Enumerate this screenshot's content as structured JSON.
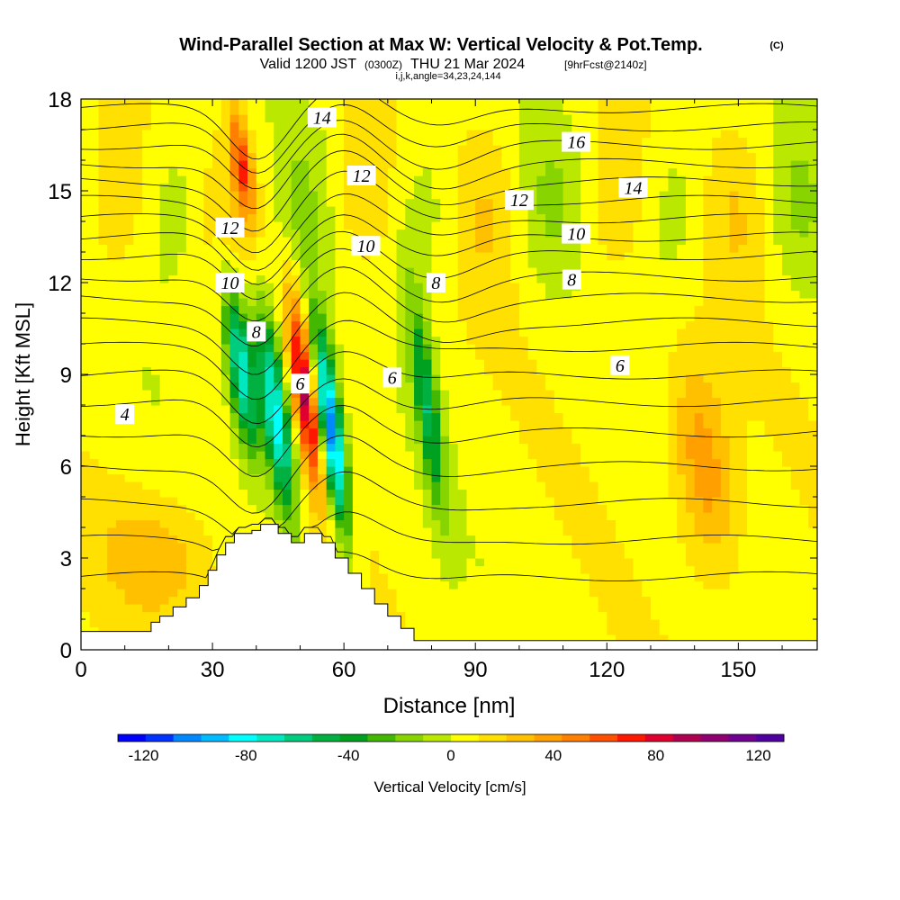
{
  "title": {
    "main": "Wind-Parallel Section at Max W: Vertical Velocity & Pot.Temp.",
    "copyright": "(C)",
    "valid_a": "Valid 1200 JST",
    "valid_utc": "(0300Z)",
    "valid_b": "THU 21 Mar 2024",
    "fcst": "[9hrFcst@2140z]",
    "ijk": "i,j,k,angle=34,23,24,144"
  },
  "chart_data": {
    "type": "heatmap",
    "xlabel": "Distance [nm]",
    "ylabel": "Height [Kft MSL]",
    "xlim": [
      0,
      168
    ],
    "ylim": [
      0,
      18
    ],
    "x_ticks": [
      0,
      30,
      60,
      90,
      120,
      150
    ],
    "y_ticks": [
      0,
      3,
      6,
      9,
      12,
      15,
      18
    ],
    "colorbar": {
      "label": "Vertical Velocity [cm/s]",
      "min": -130,
      "max": 130,
      "tick_values": [
        -120,
        -80,
        -40,
        0,
        40,
        80,
        120
      ],
      "tick_labels": [
        "-120",
        "-80",
        "-40",
        "0",
        "40",
        "80",
        "120"
      ],
      "colors": [
        "#0000ff",
        "#0033ff",
        "#0088ff",
        "#00bbff",
        "#00ffff",
        "#00e8c0",
        "#00cc80",
        "#00b040",
        "#00a020",
        "#44b800",
        "#88d400",
        "#bbe800",
        "#ffff00",
        "#ffe000",
        "#ffc000",
        "#ffa000",
        "#ff8000",
        "#ff5000",
        "#ff1800",
        "#e00030",
        "#b00050",
        "#900070",
        "#700090",
        "#5000a0"
      ]
    },
    "terrain_profile": [
      [
        0,
        0.6
      ],
      [
        16,
        0.6
      ],
      [
        16,
        0.9
      ],
      [
        18,
        0.9
      ],
      [
        18,
        1.1
      ],
      [
        21,
        1.1
      ],
      [
        21,
        1.4
      ],
      [
        24,
        1.4
      ],
      [
        24,
        1.7
      ],
      [
        27,
        1.7
      ],
      [
        27,
        2.1
      ],
      [
        29,
        2.1
      ],
      [
        29,
        2.6
      ],
      [
        31,
        2.6
      ],
      [
        31,
        3.1
      ],
      [
        33,
        3.1
      ],
      [
        33,
        3.5
      ],
      [
        35,
        3.5
      ],
      [
        35,
        3.8
      ],
      [
        39,
        3.8
      ],
      [
        39,
        3.9
      ],
      [
        41,
        3.9
      ],
      [
        41,
        4.1
      ],
      [
        45,
        4.1
      ],
      [
        45,
        3.8
      ],
      [
        48,
        3.8
      ],
      [
        48,
        3.5
      ],
      [
        51,
        3.5
      ],
      [
        51,
        3.8
      ],
      [
        55,
        3.8
      ],
      [
        55,
        3.5
      ],
      [
        58,
        3.5
      ],
      [
        58,
        3.0
      ],
      [
        61,
        3.0
      ],
      [
        61,
        2.5
      ],
      [
        64,
        2.5
      ],
      [
        64,
        2.0
      ],
      [
        67,
        2.0
      ],
      [
        67,
        1.5
      ],
      [
        70,
        1.5
      ],
      [
        70,
        1.1
      ],
      [
        73,
        1.1
      ],
      [
        73,
        0.7
      ],
      [
        76,
        0.7
      ],
      [
        76,
        0.3
      ],
      [
        168,
        0.3
      ]
    ],
    "w_features": [
      {
        "x0": 33,
        "x1": 40,
        "y0": 6,
        "y1": 12.5,
        "w": -85
      },
      {
        "x0": 41,
        "x1": 48,
        "y0": 3.9,
        "y1": 11.5,
        "w": -95
      },
      {
        "x0": 48,
        "x1": 54,
        "y0": 5,
        "y1": 12,
        "w": 85
      },
      {
        "x0": 54,
        "x1": 60,
        "y0": 3.5,
        "y1": 11,
        "w": -115
      },
      {
        "x0": 76,
        "x1": 82,
        "y0": 4,
        "y1": 12,
        "w": -55
      },
      {
        "x0": 134,
        "x1": 150,
        "y0": 2,
        "y1": 10,
        "w": 38
      },
      {
        "x0": 2,
        "x1": 35,
        "y0": 0.6,
        "y1": 5.5,
        "w": 22
      },
      {
        "x0": 34,
        "x1": 39,
        "y0": 14,
        "y1": 18,
        "w": 55
      }
    ],
    "isentrope_labels": [
      {
        "text": "14",
        "x": 55,
        "y": 17.4
      },
      {
        "text": "16",
        "x": 113,
        "y": 16.6
      },
      {
        "text": "12",
        "x": 64,
        "y": 15.5
      },
      {
        "text": "14",
        "x": 126,
        "y": 15.1
      },
      {
        "text": "12",
        "x": 100,
        "y": 14.7
      },
      {
        "text": "12",
        "x": 34,
        "y": 13.8
      },
      {
        "text": "10",
        "x": 65,
        "y": 13.2
      },
      {
        "text": "10",
        "x": 113,
        "y": 13.6
      },
      {
        "text": "8",
        "x": 81,
        "y": 12.0
      },
      {
        "text": "8",
        "x": 112,
        "y": 12.1
      },
      {
        "text": "10",
        "x": 34,
        "y": 12.0
      },
      {
        "text": "8",
        "x": 40,
        "y": 10.4
      },
      {
        "text": "6",
        "x": 50,
        "y": 8.7
      },
      {
        "text": "6",
        "x": 71,
        "y": 8.9
      },
      {
        "text": "6",
        "x": 123,
        "y": 9.3
      },
      {
        "text": "4",
        "x": 10,
        "y": 7.7
      }
    ]
  }
}
